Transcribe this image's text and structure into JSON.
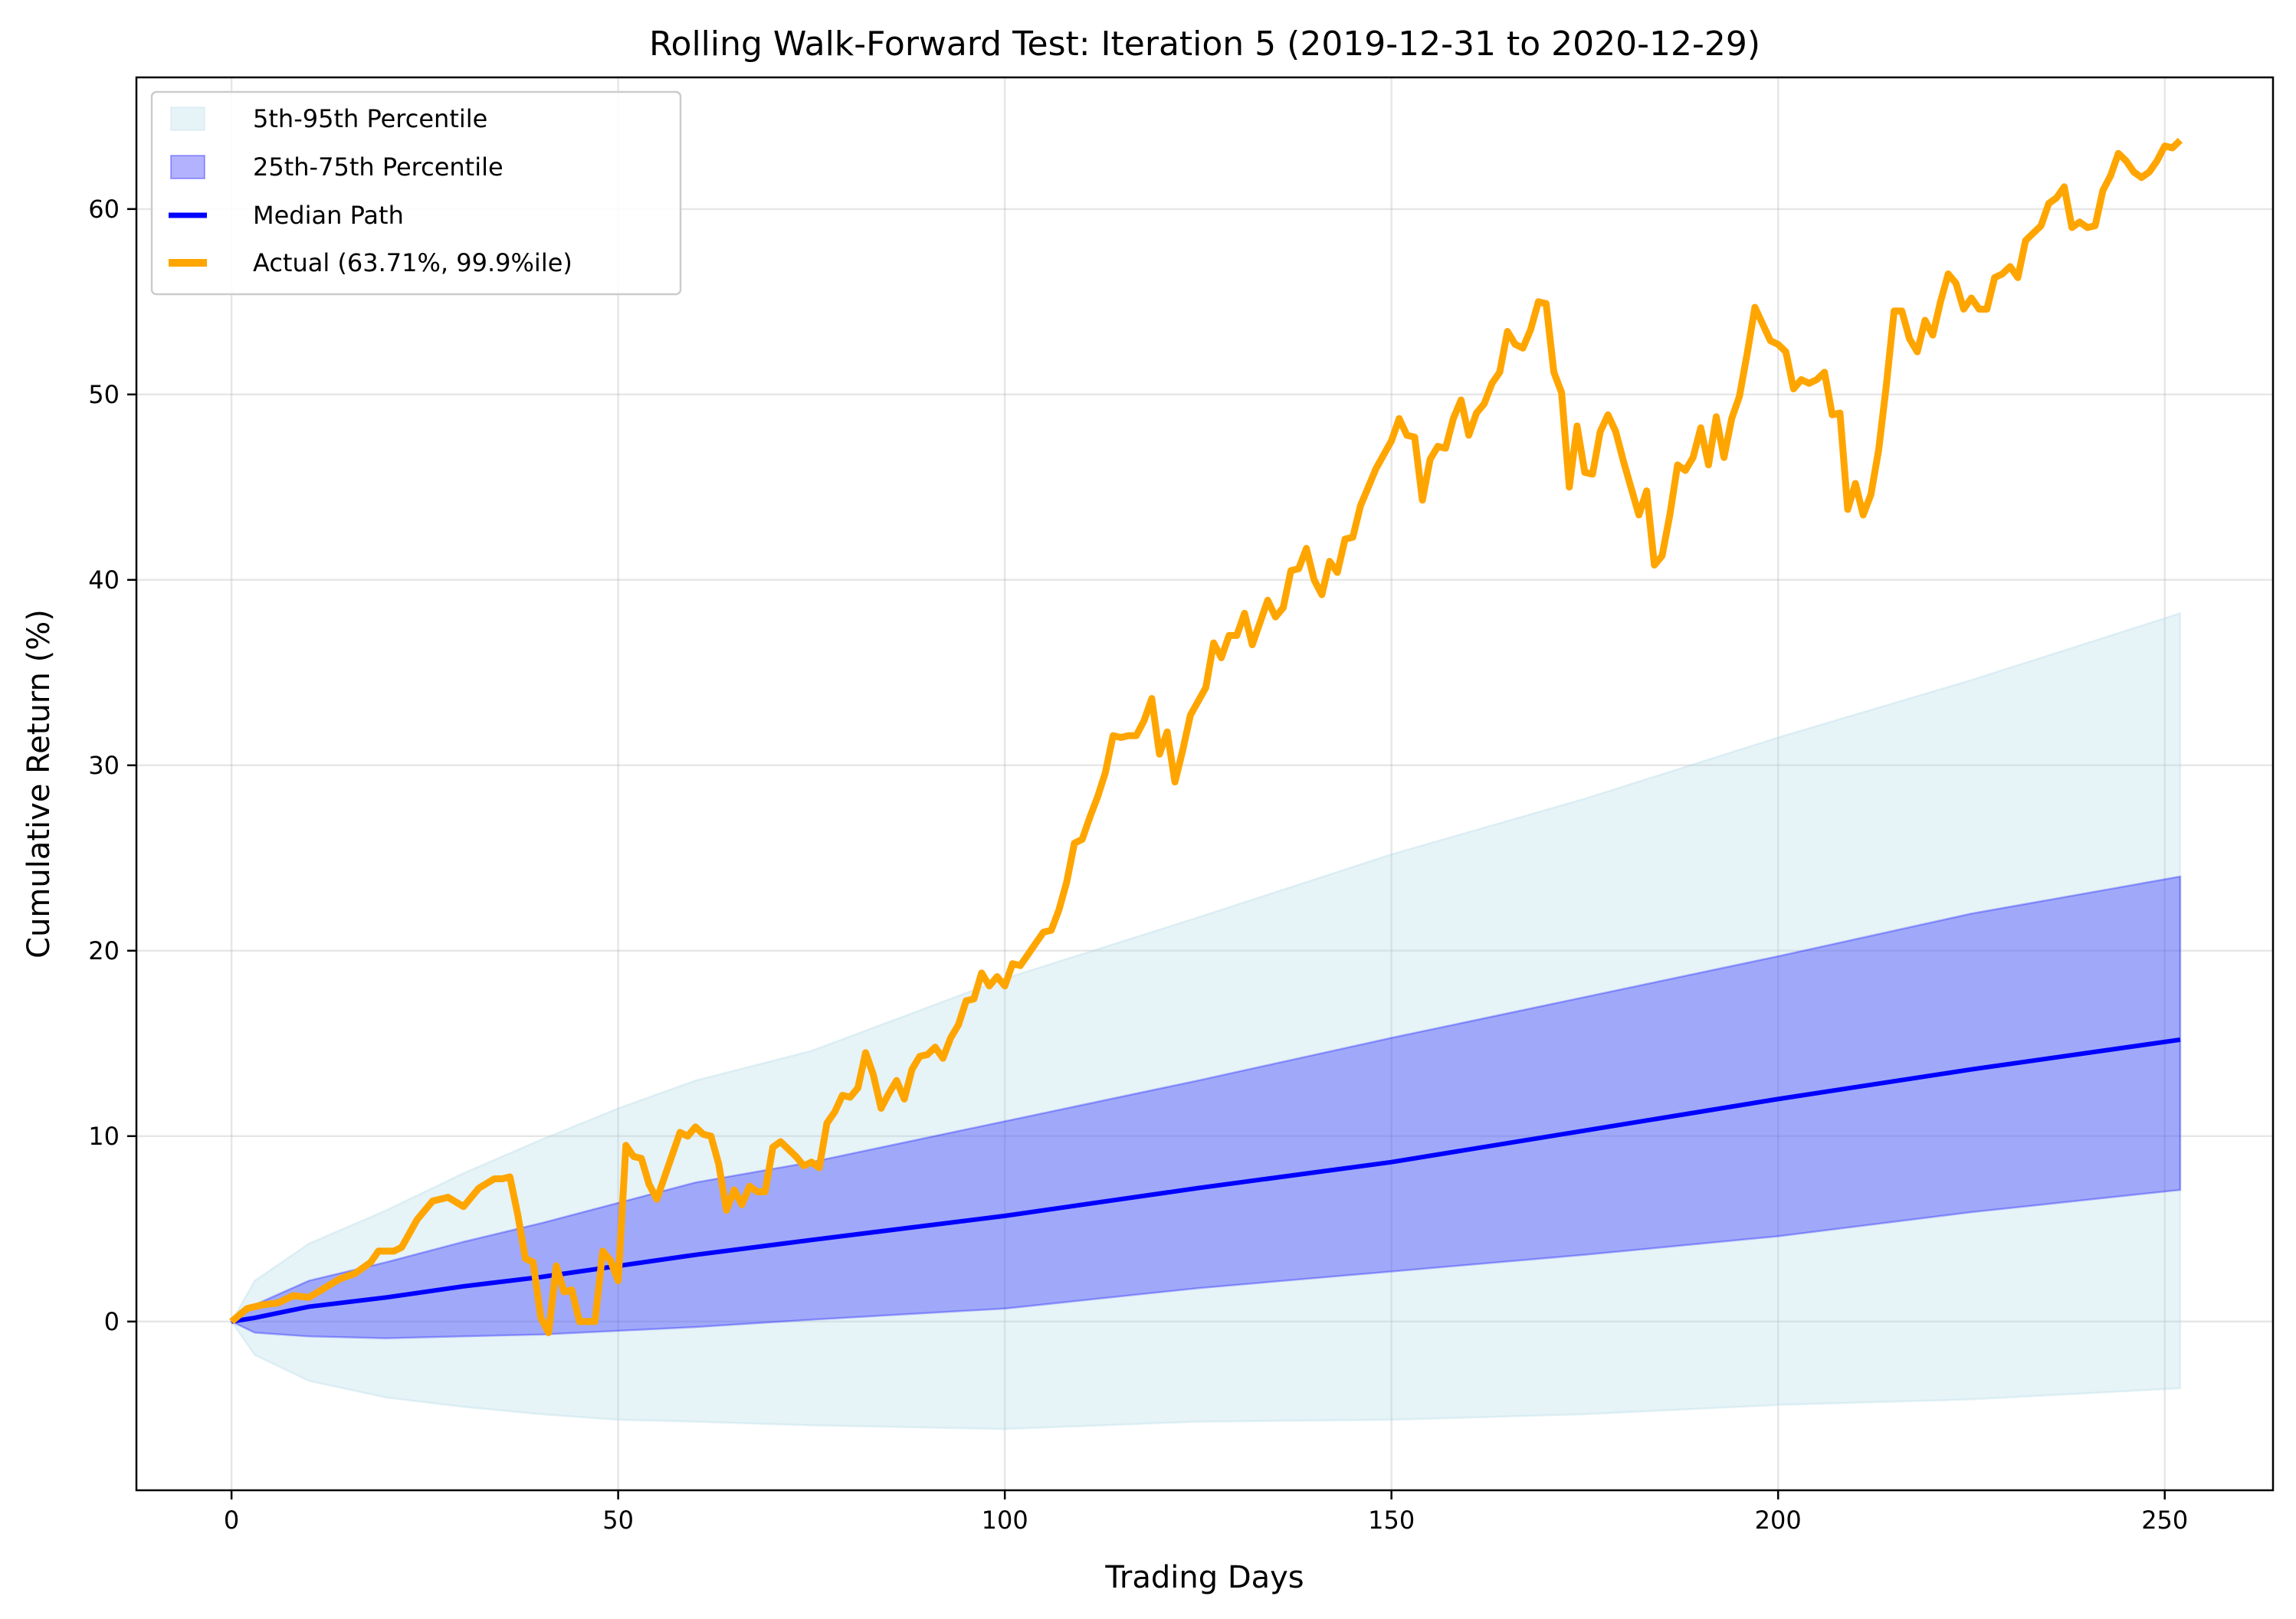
{
  "chart_data": {
    "type": "line",
    "title": "Rolling Walk-Forward Test: Iteration 5 (2019-12-31 to 2020-12-29)",
    "xlabel": "Trading Days",
    "ylabel": "Cumulative Return (%)",
    "xlim": [
      -12.3,
      264
    ],
    "ylim": [
      -9.1,
      67.1
    ],
    "xticks": [
      0,
      50,
      100,
      150,
      200,
      250
    ],
    "yticks": [
      0,
      10,
      20,
      30,
      40,
      50,
      60
    ],
    "grid": true,
    "legend_position": "top-left",
    "legend": [
      "5th-95th Percentile",
      "25th-75th Percentile",
      "Median Path",
      "Actual (63.71%, 99.9%ile)"
    ],
    "colors": {
      "band_outer": "#add8e6",
      "band_inner": "#0000ff",
      "median": "#0000ff",
      "actual": "#ffa500"
    },
    "band_days": [
      0,
      3,
      10,
      20,
      30,
      40,
      50,
      60,
      75,
      100,
      125,
      150,
      175,
      200,
      225,
      252
    ],
    "p95": [
      0,
      2.2,
      4.2,
      6,
      8,
      9.8,
      11.5,
      13,
      14.6,
      18.5,
      21.8,
      25.2,
      28.2,
      31.5,
      34.6,
      38.2
    ],
    "p75": [
      0,
      0.9,
      2.2,
      3.2,
      4.3,
      5.3,
      6.4,
      7.5,
      8.6,
      10.8,
      13,
      15.3,
      17.5,
      19.7,
      22,
      24
    ],
    "median": [
      0,
      0.2,
      0.8,
      1.3,
      1.9,
      2.4,
      3.0,
      3.6,
      4.4,
      5.7,
      7.2,
      8.6,
      10.3,
      12.0,
      13.6,
      15.2
    ],
    "p25": [
      0,
      -0.6,
      -0.8,
      -0.9,
      -0.8,
      -0.7,
      -0.5,
      -0.3,
      0.1,
      0.7,
      1.8,
      2.7,
      3.6,
      4.6,
      5.9,
      7.1
    ],
    "p5": [
      0,
      -1.8,
      -3.2,
      -4.1,
      -4.6,
      -5,
      -5.3,
      -5.4,
      -5.6,
      -5.8,
      -5.4,
      -5.3,
      -5.0,
      -4.5,
      -4.2,
      -3.6
    ],
    "actual": [
      [
        0,
        0
      ],
      [
        2,
        0.7
      ],
      [
        4,
        0.9
      ],
      [
        6,
        1.0
      ],
      [
        8,
        1.4
      ],
      [
        10,
        1.3
      ],
      [
        12,
        1.8
      ],
      [
        14,
        2.3
      ],
      [
        16,
        2.6
      ],
      [
        18,
        3.2
      ],
      [
        19,
        3.8
      ],
      [
        21,
        3.8
      ],
      [
        22,
        4.0
      ],
      [
        24,
        5.5
      ],
      [
        26,
        6.5
      ],
      [
        28,
        6.7
      ],
      [
        30,
        6.2
      ],
      [
        32,
        7.2
      ],
      [
        34,
        7.7
      ],
      [
        35,
        7.7
      ],
      [
        36,
        7.8
      ],
      [
        37,
        5.8
      ],
      [
        38,
        3.4
      ],
      [
        39,
        3.2
      ],
      [
        40,
        0.2
      ],
      [
        41,
        -0.6
      ],
      [
        42,
        3.0
      ],
      [
        43,
        1.6
      ],
      [
        44,
        1.7
      ],
      [
        45,
        0.0
      ],
      [
        47,
        0.0
      ],
      [
        48,
        3.8
      ],
      [
        49,
        3.3
      ],
      [
        50,
        2.2
      ],
      [
        51,
        9.5
      ],
      [
        52,
        8.9
      ],
      [
        53,
        8.8
      ],
      [
        54,
        7.4
      ],
      [
        55,
        6.6
      ],
      [
        56,
        7.8
      ],
      [
        58,
        10.2
      ],
      [
        59,
        10.0
      ],
      [
        60,
        10.5
      ],
      [
        61,
        10.1
      ],
      [
        62,
        10.0
      ],
      [
        63,
        8.5
      ],
      [
        64,
        6.0
      ],
      [
        65,
        7.1
      ],
      [
        66,
        6.3
      ],
      [
        67,
        7.3
      ],
      [
        68,
        7.0
      ],
      [
        69,
        7.0
      ],
      [
        70,
        9.4
      ],
      [
        71,
        9.7
      ],
      [
        73,
        8.9
      ],
      [
        74,
        8.4
      ],
      [
        75,
        8.6
      ],
      [
        76,
        8.3
      ],
      [
        77,
        10.7
      ],
      [
        78,
        11.3
      ],
      [
        79,
        12.2
      ],
      [
        80,
        12.1
      ],
      [
        81,
        12.6
      ],
      [
        82,
        14.5
      ],
      [
        83,
        13.3
      ],
      [
        84,
        11.5
      ],
      [
        85,
        12.3
      ],
      [
        86,
        13.0
      ],
      [
        87,
        12.0
      ],
      [
        88,
        13.6
      ],
      [
        89,
        14.3
      ],
      [
        90,
        14.4
      ],
      [
        91,
        14.8
      ],
      [
        92,
        14.2
      ],
      [
        93,
        15.3
      ],
      [
        94,
        16.0
      ],
      [
        95,
        17.3
      ],
      [
        96,
        17.4
      ],
      [
        97,
        18.8
      ],
      [
        98,
        18.1
      ],
      [
        99,
        18.6
      ],
      [
        100,
        18.1
      ],
      [
        101,
        19.3
      ],
      [
        102,
        19.2
      ],
      [
        103,
        19.8
      ],
      [
        104,
        20.4
      ],
      [
        105,
        21.0
      ],
      [
        106,
        21.1
      ],
      [
        107,
        22.2
      ],
      [
        108,
        23.7
      ],
      [
        109,
        25.8
      ],
      [
        110,
        26.0
      ],
      [
        111,
        27.2
      ],
      [
        112,
        28.3
      ],
      [
        113,
        29.6
      ],
      [
        114,
        31.6
      ],
      [
        115,
        31.5
      ],
      [
        116,
        31.6
      ],
      [
        117,
        31.6
      ],
      [
        118,
        32.4
      ],
      [
        119,
        33.6
      ],
      [
        120,
        30.6
      ],
      [
        121,
        31.8
      ],
      [
        122,
        29.1
      ],
      [
        123,
        30.8
      ],
      [
        124,
        32.7
      ],
      [
        126,
        34.2
      ],
      [
        127,
        36.6
      ],
      [
        128,
        35.8
      ],
      [
        129,
        37.0
      ],
      [
        130,
        37.0
      ],
      [
        131,
        38.2
      ],
      [
        132,
        36.5
      ],
      [
        134,
        38.9
      ],
      [
        135,
        38.0
      ],
      [
        136,
        38.5
      ],
      [
        137,
        40.5
      ],
      [
        138,
        40.6
      ],
      [
        139,
        41.7
      ],
      [
        140,
        40.0
      ],
      [
        141,
        39.2
      ],
      [
        142,
        41.0
      ],
      [
        143,
        40.4
      ],
      [
        144,
        42.2
      ],
      [
        145,
        42.3
      ],
      [
        146,
        44.0
      ],
      [
        148,
        46.0
      ],
      [
        150,
        47.5
      ],
      [
        151,
        48.7
      ],
      [
        152,
        47.8
      ],
      [
        153,
        47.7
      ],
      [
        154,
        44.3
      ],
      [
        155,
        46.5
      ],
      [
        156,
        47.2
      ],
      [
        157,
        47.1
      ],
      [
        158,
        48.7
      ],
      [
        159,
        49.7
      ],
      [
        160,
        47.8
      ],
      [
        161,
        49.0
      ],
      [
        162,
        49.5
      ],
      [
        163,
        50.6
      ],
      [
        164,
        51.2
      ],
      [
        165,
        53.4
      ],
      [
        166,
        52.7
      ],
      [
        167,
        52.5
      ],
      [
        168,
        53.5
      ],
      [
        169,
        55.0
      ],
      [
        170,
        54.9
      ],
      [
        171,
        51.2
      ],
      [
        172,
        50.1
      ],
      [
        173,
        45.0
      ],
      [
        174,
        48.3
      ],
      [
        175,
        45.8
      ],
      [
        176,
        45.7
      ],
      [
        177,
        48.0
      ],
      [
        178,
        48.9
      ],
      [
        179,
        48.0
      ],
      [
        180,
        46.4
      ],
      [
        182,
        43.5
      ],
      [
        183,
        44.8
      ],
      [
        184,
        40.8
      ],
      [
        185,
        41.3
      ],
      [
        186,
        43.5
      ],
      [
        187,
        46.2
      ],
      [
        188,
        45.9
      ],
      [
        189,
        46.6
      ],
      [
        190,
        48.2
      ],
      [
        191,
        46.2
      ],
      [
        192,
        48.8
      ],
      [
        193,
        46.6
      ],
      [
        194,
        48.7
      ],
      [
        195,
        49.9
      ],
      [
        196,
        52.2
      ],
      [
        197,
        54.7
      ],
      [
        198,
        53.8
      ],
      [
        199,
        52.9
      ],
      [
        200,
        52.7
      ],
      [
        201,
        52.3
      ],
      [
        202,
        50.3
      ],
      [
        203,
        50.8
      ],
      [
        204,
        50.6
      ],
      [
        205,
        50.8
      ],
      [
        206,
        51.2
      ],
      [
        207,
        48.9
      ],
      [
        208,
        49.0
      ],
      [
        209,
        43.8
      ],
      [
        210,
        45.2
      ],
      [
        211,
        43.5
      ],
      [
        212,
        44.6
      ],
      [
        213,
        47.0
      ],
      [
        214,
        50.5
      ],
      [
        215,
        54.5
      ],
      [
        216,
        54.5
      ],
      [
        217,
        53.0
      ],
      [
        218,
        52.3
      ],
      [
        219,
        54.0
      ],
      [
        220,
        53.2
      ],
      [
        221,
        55.0
      ],
      [
        222,
        56.5
      ],
      [
        223,
        56.0
      ],
      [
        224,
        54.6
      ],
      [
        225,
        55.2
      ],
      [
        226,
        54.6
      ],
      [
        227,
        54.6
      ],
      [
        228,
        56.3
      ],
      [
        229,
        56.5
      ],
      [
        230,
        56.9
      ],
      [
        231,
        56.3
      ],
      [
        232,
        58.3
      ],
      [
        233,
        58.7
      ],
      [
        234,
        59.1
      ],
      [
        235,
        60.3
      ],
      [
        236,
        60.6
      ],
      [
        237,
        61.2
      ],
      [
        238,
        59.0
      ],
      [
        239,
        59.3
      ],
      [
        240,
        59.0
      ],
      [
        241,
        59.1
      ],
      [
        242,
        61.0
      ],
      [
        243,
        61.8
      ],
      [
        244,
        63.0
      ],
      [
        245,
        62.6
      ],
      [
        246,
        62.0
      ],
      [
        247,
        61.7
      ],
      [
        248,
        62.0
      ],
      [
        249,
        62.6
      ],
      [
        250,
        63.4
      ],
      [
        251,
        63.3
      ],
      [
        252,
        63.71
      ]
    ]
  }
}
